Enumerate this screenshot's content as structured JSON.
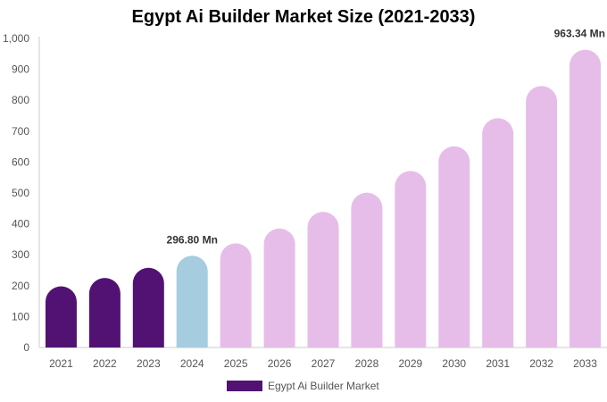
{
  "chart_data": {
    "type": "bar",
    "title": "Egypt Ai Builder Market Size (2021-2033)",
    "xlabel": "",
    "ylabel": "",
    "categories": [
      "2021",
      "2022",
      "2023",
      "2024",
      "2025",
      "2026",
      "2027",
      "2028",
      "2029",
      "2030",
      "2031",
      "2032",
      "2033"
    ],
    "series": [
      {
        "name": "Egypt Ai Builder Market",
        "values": [
          198,
          225,
          258,
          296.8,
          337,
          385,
          439,
          501,
          571,
          651,
          742,
          846,
          963.34
        ]
      }
    ],
    "bar_colors": [
      "#521273",
      "#521273",
      "#521273",
      "#a6cce0",
      "#e6bde9",
      "#e6bde9",
      "#e6bde9",
      "#e6bde9",
      "#e6bde9",
      "#e6bde9",
      "#e6bde9",
      "#e6bde9",
      "#e6bde9"
    ],
    "legend_color": "#521273",
    "ylim": [
      0,
      1000
    ],
    "yticks": [
      0,
      100,
      200,
      300,
      400,
      500,
      600,
      700,
      800,
      900,
      1000
    ],
    "ytick_labels": [
      "0",
      "100",
      "200",
      "300",
      "400",
      "500",
      "600",
      "700",
      "800",
      "900",
      "1,000"
    ],
    "grid": false,
    "legend_position": "bottom",
    "annotations": [
      {
        "category": "2024",
        "text": "296.80 Mn"
      },
      {
        "category": "2033",
        "text": "963.34 Mn"
      }
    ]
  }
}
